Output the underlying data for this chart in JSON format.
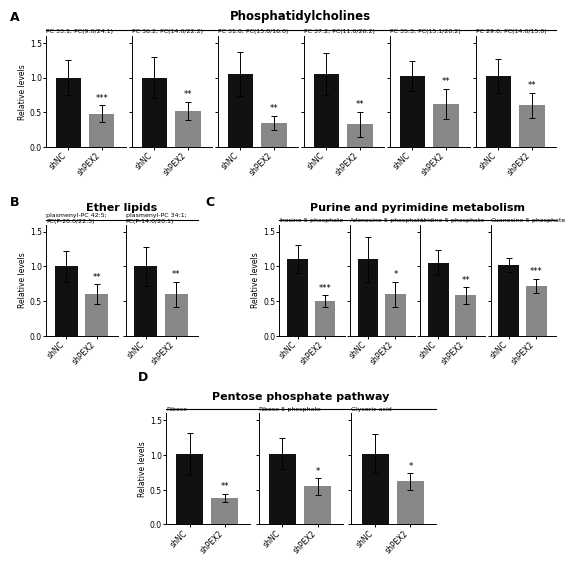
{
  "panel_A": {
    "title": "Phosphatidylcholines",
    "subplots": [
      {
        "subtitle": "PC 33:1; PC(9:0/24:1)",
        "black_val": 1.0,
        "black_err": 0.25,
        "gray_val": 0.48,
        "gray_err": 0.12,
        "sig": "***"
      },
      {
        "subtitle": "PC 36:2; PC(14:0/22:2)",
        "black_val": 1.0,
        "black_err": 0.3,
        "gray_val": 0.52,
        "gray_err": 0.13,
        "sig": "**"
      },
      {
        "subtitle": "PC 31:0; PC(15:0/16:0)",
        "black_val": 1.05,
        "black_err": 0.32,
        "gray_val": 0.35,
        "gray_err": 0.1,
        "sig": "**"
      },
      {
        "subtitle": "PC 37:2; PC(11:0/26:2)",
        "black_val": 1.05,
        "black_err": 0.3,
        "gray_val": 0.33,
        "gray_err": 0.18,
        "sig": "**"
      },
      {
        "subtitle": "PC 35:3; PC(15:1/20:2)",
        "black_val": 1.02,
        "black_err": 0.22,
        "gray_val": 0.62,
        "gray_err": 0.22,
        "sig": "**"
      },
      {
        "subtitle": "PC 29:0; PC(14:0/15:0)",
        "black_val": 1.02,
        "black_err": 0.25,
        "gray_val": 0.6,
        "gray_err": 0.18,
        "sig": "**"
      }
    ]
  },
  "panel_B": {
    "title": "Ether lipids",
    "subplots": [
      {
        "subtitle": "plasmenyl-PC 42:5;\nPC(P-20:0/22:5)",
        "black_val": 1.0,
        "black_err": 0.22,
        "gray_val": 0.6,
        "gray_err": 0.14,
        "sig": "**"
      },
      {
        "subtitle": "plasmenyl-PC 34:1;\nPC(P-14:0/20:1)",
        "black_val": 1.0,
        "black_err": 0.28,
        "gray_val": 0.6,
        "gray_err": 0.18,
        "sig": "**"
      }
    ]
  },
  "panel_C": {
    "title": "Purine and pyrimidine metabolism",
    "subplots": [
      {
        "subtitle": "Inosine-5-phosphate",
        "black_val": 1.1,
        "black_err": 0.2,
        "gray_val": 0.5,
        "gray_err": 0.08,
        "sig": "***"
      },
      {
        "subtitle": "Adenosine-5-phosphate",
        "black_val": 1.1,
        "black_err": 0.32,
        "gray_val": 0.6,
        "gray_err": 0.18,
        "sig": "*"
      },
      {
        "subtitle": "Uridine-5-phosphate",
        "black_val": 1.05,
        "black_err": 0.18,
        "gray_val": 0.58,
        "gray_err": 0.12,
        "sig": "**"
      },
      {
        "subtitle": "Guanosine-5-phosphate",
        "black_val": 1.02,
        "black_err": 0.1,
        "gray_val": 0.72,
        "gray_err": 0.1,
        "sig": "***"
      }
    ]
  },
  "panel_D": {
    "title": "Pentose phosphate pathway",
    "subplots": [
      {
        "subtitle": "Ribose",
        "black_val": 1.02,
        "black_err": 0.3,
        "gray_val": 0.38,
        "gray_err": 0.06,
        "sig": "**"
      },
      {
        "subtitle": "Ribose-5-phosphate",
        "black_val": 1.02,
        "black_err": 0.22,
        "gray_val": 0.55,
        "gray_err": 0.12,
        "sig": "*"
      },
      {
        "subtitle": "Glyceric acid",
        "black_val": 1.02,
        "black_err": 0.28,
        "gray_val": 0.62,
        "gray_err": 0.12,
        "sig": "*"
      }
    ]
  },
  "black_color": "#111111",
  "gray_color": "#888888",
  "ylabel": "Relative levels",
  "xlabel_nc": "shNC",
  "xlabel_sh": "shPEX2",
  "ylim": [
    0.0,
    1.6
  ],
  "yticks": [
    0.0,
    0.5,
    1.0,
    1.5
  ]
}
